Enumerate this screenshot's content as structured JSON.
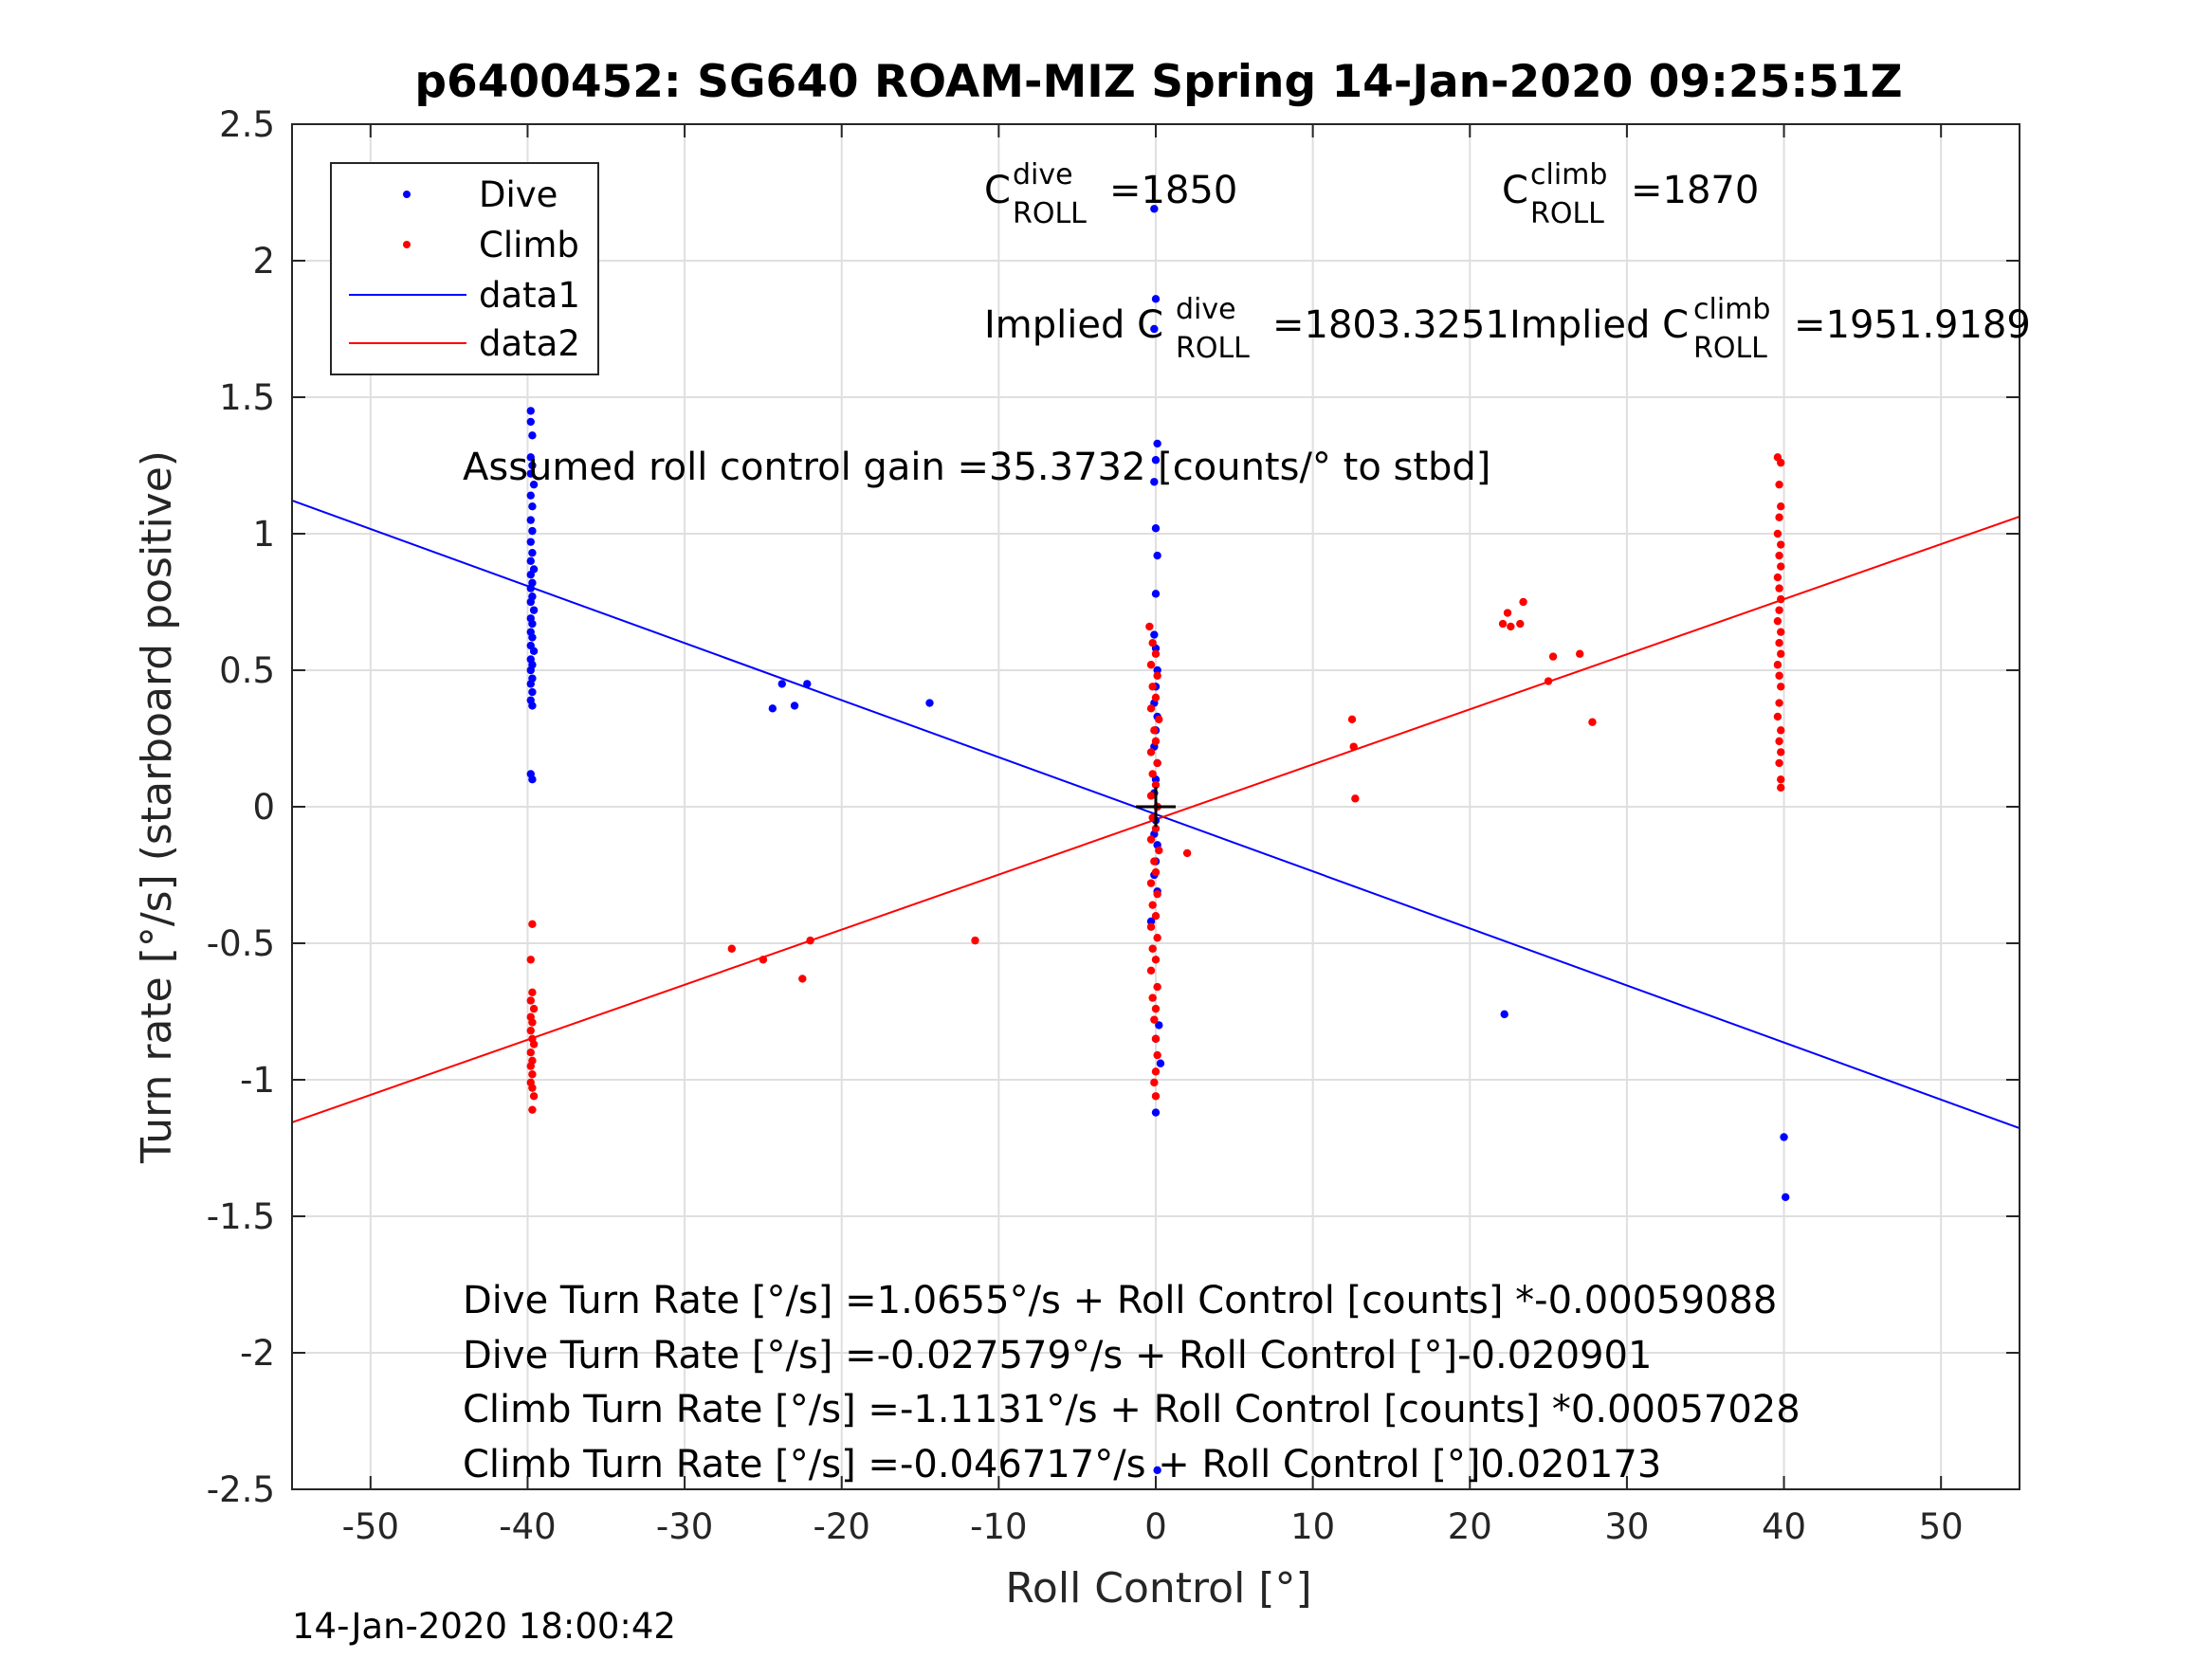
{
  "chart_data": {
    "type": "scatter",
    "title": "p6400452: SG640 ROAM-MIZ Spring 14-Jan-2020 09:25:51Z",
    "xlabel": "Roll Control [°]",
    "ylabel": "Turn rate [°/s] (starboard positive)",
    "xlim": [
      -55,
      55
    ],
    "ylim": [
      -2.5,
      2.5
    ],
    "x_ticks": [
      -50,
      -40,
      -30,
      -20,
      -10,
      0,
      10,
      20,
      30,
      40,
      50
    ],
    "y_ticks": [
      2.5,
      2,
      1.5,
      1,
      0.5,
      0,
      -0.5,
      -1,
      -1.5,
      -2,
      -2.5
    ],
    "grid": true,
    "legend_position": "top-left",
    "series": [
      {
        "name": "Dive",
        "kind": "points",
        "color": "#0000ff",
        "points": [
          [
            -39.8,
            1.45
          ],
          [
            -39.8,
            1.41
          ],
          [
            -39.7,
            1.36
          ],
          [
            -39.8,
            1.28
          ],
          [
            -39.7,
            1.25
          ],
          [
            -39.8,
            1.22
          ],
          [
            -39.6,
            1.18
          ],
          [
            -39.8,
            1.14
          ],
          [
            -39.7,
            1.1
          ],
          [
            -39.8,
            1.05
          ],
          [
            -39.7,
            1.01
          ],
          [
            -39.8,
            0.97
          ],
          [
            -39.7,
            0.93
          ],
          [
            -39.8,
            0.9
          ],
          [
            -39.6,
            0.87
          ],
          [
            -39.8,
            0.85
          ],
          [
            -39.7,
            0.82
          ],
          [
            -39.8,
            0.8
          ],
          [
            -39.7,
            0.77
          ],
          [
            -39.8,
            0.75
          ],
          [
            -39.6,
            0.72
          ],
          [
            -39.8,
            0.69
          ],
          [
            -39.7,
            0.67
          ],
          [
            -39.8,
            0.64
          ],
          [
            -39.7,
            0.62
          ],
          [
            -39.8,
            0.59
          ],
          [
            -39.6,
            0.57
          ],
          [
            -39.8,
            0.54
          ],
          [
            -39.7,
            0.52
          ],
          [
            -39.8,
            0.5
          ],
          [
            -39.7,
            0.47
          ],
          [
            -39.8,
            0.45
          ],
          [
            -39.7,
            0.42
          ],
          [
            -39.8,
            0.39
          ],
          [
            -39.7,
            0.37
          ],
          [
            -39.8,
            0.12
          ],
          [
            -39.7,
            0.1
          ],
          [
            -24.4,
            0.36
          ],
          [
            -23.8,
            0.45
          ],
          [
            -23.0,
            0.37
          ],
          [
            -22.2,
            0.45
          ],
          [
            -14.4,
            0.38
          ],
          [
            -0.1,
            2.19
          ],
          [
            0.0,
            1.86
          ],
          [
            -0.1,
            1.75
          ],
          [
            0.1,
            1.33
          ],
          [
            0.0,
            1.27
          ],
          [
            -0.1,
            1.19
          ],
          [
            0.0,
            1.02
          ],
          [
            0.1,
            0.92
          ],
          [
            0.0,
            0.78
          ],
          [
            -0.1,
            0.63
          ],
          [
            0.0,
            0.58
          ],
          [
            0.1,
            0.5
          ],
          [
            0.0,
            0.44
          ],
          [
            -0.1,
            0.38
          ],
          [
            0.1,
            0.33
          ],
          [
            0.0,
            0.28
          ],
          [
            -0.1,
            0.22
          ],
          [
            0.1,
            0.16
          ],
          [
            0.0,
            0.1
          ],
          [
            -0.1,
            0.05
          ],
          [
            0.1,
            0.0
          ],
          [
            0.0,
            -0.05
          ],
          [
            -0.1,
            -0.1
          ],
          [
            0.1,
            -0.14
          ],
          [
            0.0,
            -0.2
          ],
          [
            -0.1,
            -0.25
          ],
          [
            0.1,
            -0.31
          ],
          [
            -0.3,
            -0.42
          ],
          [
            0.2,
            -0.8
          ],
          [
            0.0,
            -0.85
          ],
          [
            0.3,
            -0.94
          ],
          [
            0.0,
            -1.12
          ],
          [
            0.1,
            -2.43
          ],
          [
            22.2,
            -0.76
          ],
          [
            40.0,
            -1.21
          ],
          [
            40.1,
            -1.43
          ]
        ]
      },
      {
        "name": "Climb",
        "kind": "points",
        "color": "#ff0000",
        "points": [
          [
            -39.7,
            -0.43
          ],
          [
            -39.8,
            -0.56
          ],
          [
            -39.7,
            -0.68
          ],
          [
            -39.8,
            -0.71
          ],
          [
            -39.6,
            -0.74
          ],
          [
            -39.8,
            -0.77
          ],
          [
            -39.7,
            -0.79
          ],
          [
            -39.8,
            -0.82
          ],
          [
            -39.7,
            -0.85
          ],
          [
            -39.6,
            -0.87
          ],
          [
            -39.8,
            -0.9
          ],
          [
            -39.7,
            -0.93
          ],
          [
            -39.8,
            -0.95
          ],
          [
            -39.7,
            -0.98
          ],
          [
            -39.8,
            -1.01
          ],
          [
            -39.7,
            -1.03
          ],
          [
            -39.6,
            -1.06
          ],
          [
            -39.7,
            -1.11
          ],
          [
            -27.0,
            -0.52
          ],
          [
            -25.0,
            -0.56
          ],
          [
            -22.5,
            -0.63
          ],
          [
            -22.0,
            -0.49
          ],
          [
            -11.5,
            -0.49
          ],
          [
            -0.4,
            0.66
          ],
          [
            -0.2,
            0.6
          ],
          [
            0.0,
            0.56
          ],
          [
            -0.3,
            0.52
          ],
          [
            0.1,
            0.48
          ],
          [
            -0.2,
            0.44
          ],
          [
            0.0,
            0.4
          ],
          [
            -0.3,
            0.36
          ],
          [
            0.2,
            0.32
          ],
          [
            -0.1,
            0.28
          ],
          [
            0.0,
            0.24
          ],
          [
            -0.3,
            0.2
          ],
          [
            0.1,
            0.16
          ],
          [
            -0.2,
            0.12
          ],
          [
            0.0,
            0.08
          ],
          [
            -0.3,
            0.04
          ],
          [
            0.1,
            0.0
          ],
          [
            -0.2,
            -0.04
          ],
          [
            0.0,
            -0.08
          ],
          [
            -0.3,
            -0.12
          ],
          [
            0.2,
            -0.16
          ],
          [
            -0.1,
            -0.2
          ],
          [
            0.0,
            -0.24
          ],
          [
            -0.3,
            -0.28
          ],
          [
            0.1,
            -0.32
          ],
          [
            -0.2,
            -0.36
          ],
          [
            0.0,
            -0.4
          ],
          [
            -0.3,
            -0.44
          ],
          [
            0.1,
            -0.48
          ],
          [
            -0.2,
            -0.52
          ],
          [
            0.0,
            -0.56
          ],
          [
            -0.3,
            -0.6
          ],
          [
            0.1,
            -0.66
          ],
          [
            -0.2,
            -0.7
          ],
          [
            0.0,
            -0.74
          ],
          [
            -0.1,
            -0.78
          ],
          [
            0.0,
            -0.85
          ],
          [
            0.1,
            -0.91
          ],
          [
            0.0,
            -0.97
          ],
          [
            -0.1,
            -1.01
          ],
          [
            0.0,
            -1.06
          ],
          [
            2.0,
            -0.17
          ],
          [
            12.5,
            0.32
          ],
          [
            12.6,
            0.22
          ],
          [
            12.7,
            0.03
          ],
          [
            22.1,
            0.67
          ],
          [
            22.4,
            0.71
          ],
          [
            22.6,
            0.66
          ],
          [
            23.2,
            0.67
          ],
          [
            23.4,
            0.75
          ],
          [
            25.0,
            0.46
          ],
          [
            25.3,
            0.55
          ],
          [
            27.0,
            0.56
          ],
          [
            27.8,
            0.31
          ],
          [
            39.6,
            1.28
          ],
          [
            39.8,
            1.26
          ],
          [
            39.7,
            1.18
          ],
          [
            39.8,
            1.1
          ],
          [
            39.7,
            1.06
          ],
          [
            39.6,
            1.0
          ],
          [
            39.8,
            0.96
          ],
          [
            39.7,
            0.92
          ],
          [
            39.8,
            0.88
          ],
          [
            39.6,
            0.84
          ],
          [
            39.7,
            0.8
          ],
          [
            39.8,
            0.76
          ],
          [
            39.7,
            0.72
          ],
          [
            39.6,
            0.68
          ],
          [
            39.8,
            0.64
          ],
          [
            39.7,
            0.6
          ],
          [
            39.8,
            0.56
          ],
          [
            39.6,
            0.52
          ],
          [
            39.7,
            0.48
          ],
          [
            39.8,
            0.44
          ],
          [
            39.7,
            0.38
          ],
          [
            39.6,
            0.33
          ],
          [
            39.8,
            0.28
          ],
          [
            39.7,
            0.24
          ],
          [
            39.8,
            0.2
          ],
          [
            39.7,
            0.16
          ],
          [
            39.8,
            0.1
          ],
          [
            39.8,
            0.07
          ]
        ]
      },
      {
        "name": "data1",
        "kind": "line",
        "color": "#0000ff",
        "x": [
          -55,
          55
        ],
        "y": [
          1.1219,
          -1.1771
        ]
      },
      {
        "name": "data2",
        "kind": "line",
        "color": "#ff0000",
        "x": [
          -55,
          55
        ],
        "y": [
          -1.1562,
          1.0628
        ]
      }
    ],
    "origin_marker": [
      0,
      0
    ],
    "annotations": {
      "c_roll_dive_base": "C",
      "c_roll_dive_sup": "dive",
      "c_roll_dive_sub": "ROLL",
      "c_roll_dive_val": "=1850",
      "c_roll_climb_base": "C",
      "c_roll_climb_sup": "climb",
      "c_roll_climb_sub": "ROLL",
      "c_roll_climb_val": "=1870",
      "implied_dive_base": "Implied C",
      "implied_dive_sup": "dive",
      "implied_dive_sub": "ROLL",
      "implied_dive_val": "=1803.3251",
      "implied_climb_base": "Implied C",
      "implied_climb_sup": "climb",
      "implied_climb_sub": "ROLL",
      "implied_climb_val": "=1951.9189",
      "gain": "Assumed roll control gain =35.3732 [counts/° to stbd]",
      "eq1": "Dive Turn Rate [°/s] =1.0655°/s + Roll Control [counts] *-0.00059088",
      "eq2": "Dive Turn Rate [°/s] =-0.027579°/s + Roll Control [°]-0.020901",
      "eq3": "Climb Turn Rate [°/s] =-1.1131°/s + Roll Control [counts] *0.00057028",
      "eq4": "Climb Turn Rate [°/s] =-0.046717°/s + Roll Control [°]0.020173"
    },
    "footer": "14-Jan-2020 18:00:42"
  }
}
